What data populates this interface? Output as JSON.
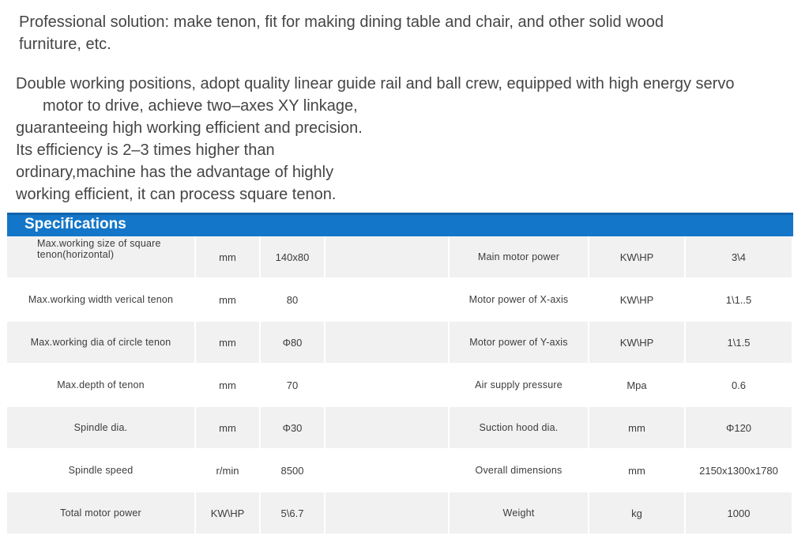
{
  "intro": "Professional solution: make tenon, fit for making dining table and chair, and other solid wood furniture, etc.",
  "description_lines": [
    "Double working positions, adopt quality linear guide rail and ball crew, equipped with high energy servo",
    "motor to drive, achieve two–axes XY linkage,",
    "guaranteeing high working efficient and precision.",
    "Its efficiency is 2–3 times higher than",
    "ordinary,machine has the advantage of highly",
    "working efficient, it can process square tenon."
  ],
  "specifications": {
    "title": "Specifications",
    "rows": [
      {
        "param1": "Max.working size of square tenon(horizontal)",
        "unit1": "mm",
        "value1": "140x80",
        "param2": "Main motor power",
        "unit2": "KW\\HP",
        "value2": "3\\4"
      },
      {
        "param1": "Max.working width verical tenon",
        "unit1": "mm",
        "value1": "80",
        "param2": "Motor power of X-axis",
        "unit2": "KW\\HP",
        "value2": "1\\1..5"
      },
      {
        "param1": "Max.working dia of circle tenon",
        "unit1": "mm",
        "value1": "Φ80",
        "param2": "Motor power of Y-axis",
        "unit2": "KW\\HP",
        "value2": "1\\1.5"
      },
      {
        "param1": "Max.depth of tenon",
        "unit1": "mm",
        "value1": "70",
        "param2": "Air supply pressure",
        "unit2": "Mpa",
        "value2": "0.6"
      },
      {
        "param1": "Spindle dia.",
        "unit1": "mm",
        "value1": "Φ30",
        "param2": "Suction hood dia.",
        "unit2": "mm",
        "value2": "Φ120"
      },
      {
        "param1": "Spindle speed",
        "unit1": "r/min",
        "value1": "8500",
        "param2": "Overall dimensions",
        "unit2": "mm",
        "value2": "2150x1300x1780"
      },
      {
        "param1": "Total motor power",
        "unit1": "KW\\HP",
        "value1": "5\\6.7",
        "param2": "Weight",
        "unit2": "kg",
        "value2": "1000"
      }
    ]
  },
  "colors": {
    "header_bar": "#1476c8",
    "row_shade": "#f1f1f2"
  }
}
